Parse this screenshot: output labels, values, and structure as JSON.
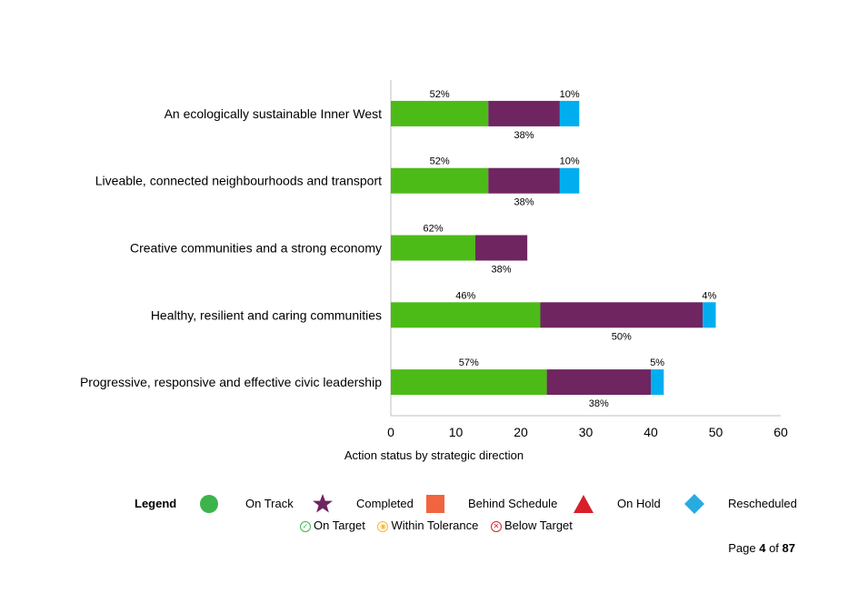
{
  "chart_data": {
    "type": "bar",
    "orientation": "horizontal",
    "stacked": true,
    "categories": [
      "An ecologically sustainable Inner West",
      "Liveable, connected neighbourhoods and transport",
      "Creative communities and a strong economy",
      "Healthy, resilient and caring communities",
      "Progressive, responsive and effective civic leadership"
    ],
    "series": [
      {
        "name": "On Track",
        "color": "#4cbb17",
        "values": [
          15,
          15,
          13,
          23,
          24
        ],
        "labels": [
          "52%",
          "52%",
          "62%",
          "46%",
          "57%"
        ]
      },
      {
        "name": "Completed",
        "color": "#6e2560",
        "values": [
          11,
          11,
          8,
          25,
          16
        ],
        "labels": [
          "38%",
          "38%",
          "38%",
          "50%",
          "38%"
        ]
      },
      {
        "name": "Rescheduled",
        "color": "#00aeef",
        "values": [
          3,
          3,
          0,
          2,
          2
        ],
        "labels": [
          "10%",
          "10%",
          "",
          "4%",
          "5%"
        ]
      }
    ],
    "xlabel": "Action status by strategic direction",
    "xlim": [
      0,
      60
    ],
    "xticks": [
      0,
      10,
      20,
      30,
      40,
      50,
      60
    ],
    "grid": false,
    "legend_position": "bottom"
  },
  "legend": {
    "title": "Legend",
    "items": [
      {
        "label": "On Track",
        "shape": "circle",
        "color": "#3cb44b"
      },
      {
        "label": "Completed",
        "shape": "star",
        "color": "#6e2560"
      },
      {
        "label": "Behind Schedule",
        "shape": "square",
        "color": "#f26440"
      },
      {
        "label": "On Hold",
        "shape": "triangle",
        "color": "#d7202a"
      },
      {
        "label": "Rescheduled",
        "shape": "diamond",
        "color": "#29abe2"
      }
    ],
    "targets": [
      {
        "label": "On Target",
        "icon": "check-circle-icon",
        "color": "#3cb44b",
        "glyph": "✓"
      },
      {
        "label": "Within Tolerance",
        "icon": "neutral-circle-icon",
        "color": "#f7b731",
        "glyph": "◉"
      },
      {
        "label": "Below Target",
        "icon": "x-circle-icon",
        "color": "#d7202a",
        "glyph": "✕"
      }
    ]
  },
  "footer": {
    "prefix": "Page",
    "current": "4",
    "middle": "of",
    "total": "87"
  }
}
